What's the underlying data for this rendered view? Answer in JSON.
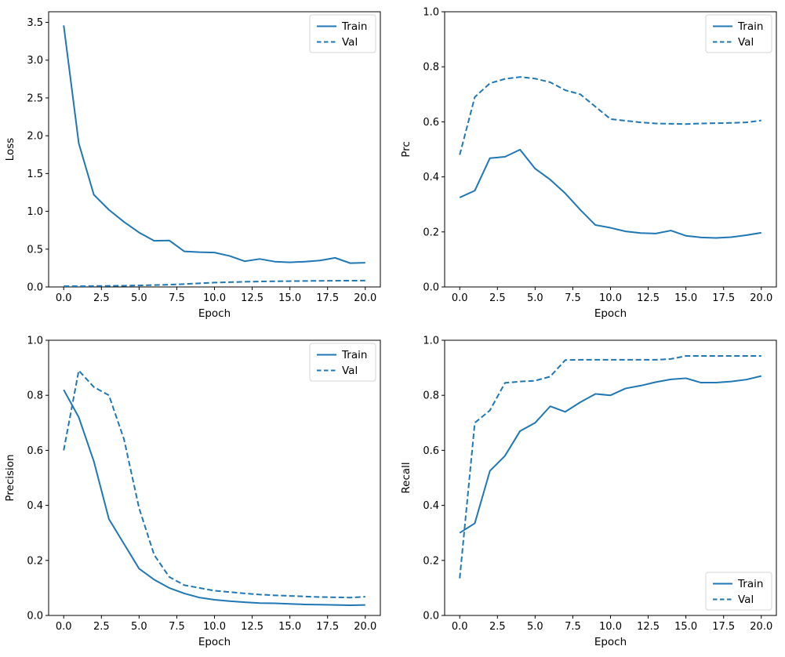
{
  "figure": {
    "background_color": "#ffffff",
    "accent_color": "#1f77b4",
    "axis_color": "#000000",
    "legend_border_color": "#d5d5d5",
    "xlabel": "Epoch",
    "legend_labels": [
      "Train",
      "Val"
    ]
  },
  "chart_data": [
    {
      "id": "loss",
      "type": "line",
      "title": "",
      "xlabel": "Epoch",
      "ylabel": "Loss",
      "x": [
        0,
        1,
        2,
        3,
        4,
        5,
        6,
        7,
        8,
        9,
        10,
        11,
        12,
        13,
        14,
        15,
        16,
        17,
        18,
        19,
        20
      ],
      "series": [
        {
          "name": "Train",
          "style": "solid",
          "values": [
            3.46,
            1.9,
            1.22,
            1.02,
            0.86,
            0.72,
            0.61,
            0.615,
            0.47,
            0.46,
            0.455,
            0.41,
            0.34,
            0.37,
            0.335,
            0.325,
            0.335,
            0.35,
            0.385,
            0.315,
            0.32
          ]
        },
        {
          "name": "Val",
          "style": "dashed",
          "values": [
            0.01,
            0.01,
            0.012,
            0.014,
            0.016,
            0.02,
            0.025,
            0.03,
            0.038,
            0.048,
            0.058,
            0.063,
            0.068,
            0.072,
            0.075,
            0.077,
            0.079,
            0.081,
            0.082,
            0.083,
            0.084
          ]
        }
      ],
      "xlim": [
        -1,
        21
      ],
      "ylim": [
        0,
        3.64
      ],
      "xticks": [
        0,
        2.5,
        5,
        7.5,
        10,
        12.5,
        15,
        17.5,
        20
      ],
      "yticks": [
        0,
        0.5,
        1.0,
        1.5,
        2.0,
        2.5,
        3.0,
        3.5
      ],
      "grid": false,
      "legend_position": "upper-right"
    },
    {
      "id": "prc",
      "type": "line",
      "title": "",
      "xlabel": "Epoch",
      "ylabel": "Prc",
      "x": [
        0,
        1,
        2,
        3,
        4,
        5,
        6,
        7,
        8,
        9,
        10,
        11,
        12,
        13,
        14,
        15,
        16,
        17,
        18,
        19,
        20
      ],
      "series": [
        {
          "name": "Train",
          "style": "solid",
          "values": [
            0.325,
            0.35,
            0.468,
            0.473,
            0.499,
            0.43,
            0.39,
            0.34,
            0.28,
            0.225,
            0.215,
            0.202,
            0.196,
            0.194,
            0.205,
            0.186,
            0.18,
            0.178,
            0.181,
            0.188,
            0.197
          ]
        },
        {
          "name": "Val",
          "style": "dashed",
          "values": [
            0.48,
            0.69,
            0.74,
            0.756,
            0.763,
            0.757,
            0.744,
            0.715,
            0.7,
            0.655,
            0.61,
            0.604,
            0.598,
            0.594,
            0.593,
            0.592,
            0.594,
            0.595,
            0.596,
            0.598,
            0.605
          ]
        }
      ],
      "xlim": [
        -1,
        21
      ],
      "ylim": [
        0,
        1.0
      ],
      "xticks": [
        0,
        2.5,
        5,
        7.5,
        10,
        12.5,
        15,
        17.5,
        20
      ],
      "yticks": [
        0,
        0.2,
        0.4,
        0.6,
        0.8,
        1.0
      ],
      "grid": false,
      "legend_position": "upper-right"
    },
    {
      "id": "precision",
      "type": "line",
      "title": "",
      "xlabel": "Epoch",
      "ylabel": "Precision",
      "x": [
        0,
        1,
        2,
        3,
        4,
        5,
        6,
        7,
        8,
        9,
        10,
        11,
        12,
        13,
        14,
        15,
        16,
        17,
        18,
        19,
        20
      ],
      "series": [
        {
          "name": "Train",
          "style": "solid",
          "values": [
            0.82,
            0.72,
            0.56,
            0.35,
            0.26,
            0.17,
            0.13,
            0.1,
            0.08,
            0.065,
            0.057,
            0.052,
            0.048,
            0.045,
            0.044,
            0.042,
            0.04,
            0.039,
            0.038,
            0.037,
            0.038
          ]
        },
        {
          "name": "Val",
          "style": "dashed",
          "values": [
            0.6,
            0.89,
            0.83,
            0.8,
            0.64,
            0.39,
            0.22,
            0.14,
            0.11,
            0.1,
            0.09,
            0.085,
            0.08,
            0.076,
            0.073,
            0.071,
            0.069,
            0.067,
            0.066,
            0.065,
            0.068
          ]
        }
      ],
      "xlim": [
        -1,
        21
      ],
      "ylim": [
        0,
        1.0
      ],
      "xticks": [
        0,
        2.5,
        5,
        7.5,
        10,
        12.5,
        15,
        17.5,
        20
      ],
      "yticks": [
        0,
        0.2,
        0.4,
        0.6,
        0.8,
        1.0
      ],
      "grid": false,
      "legend_position": "upper-right"
    },
    {
      "id": "recall",
      "type": "line",
      "title": "",
      "xlabel": "Epoch",
      "ylabel": "Recall",
      "x": [
        0,
        1,
        2,
        3,
        4,
        5,
        6,
        7,
        8,
        9,
        10,
        11,
        12,
        13,
        14,
        15,
        16,
        17,
        18,
        19,
        20
      ],
      "series": [
        {
          "name": "Train",
          "style": "solid",
          "values": [
            0.3,
            0.335,
            0.525,
            0.58,
            0.67,
            0.7,
            0.76,
            0.74,
            0.775,
            0.805,
            0.8,
            0.825,
            0.835,
            0.848,
            0.858,
            0.862,
            0.846,
            0.846,
            0.85,
            0.857,
            0.87
          ]
        },
        {
          "name": "Val",
          "style": "dashed",
          "values": [
            0.135,
            0.7,
            0.745,
            0.845,
            0.85,
            0.853,
            0.868,
            0.928,
            0.929,
            0.929,
            0.929,
            0.929,
            0.929,
            0.929,
            0.932,
            0.943,
            0.943,
            0.943,
            0.943,
            0.943,
            0.943
          ]
        }
      ],
      "xlim": [
        -1,
        21
      ],
      "ylim": [
        0,
        1.0
      ],
      "xticks": [
        0,
        2.5,
        5,
        7.5,
        10,
        12.5,
        15,
        17.5,
        20
      ],
      "yticks": [
        0,
        0.2,
        0.4,
        0.6,
        0.8,
        1.0
      ],
      "grid": false,
      "legend_position": "lower-right"
    }
  ]
}
